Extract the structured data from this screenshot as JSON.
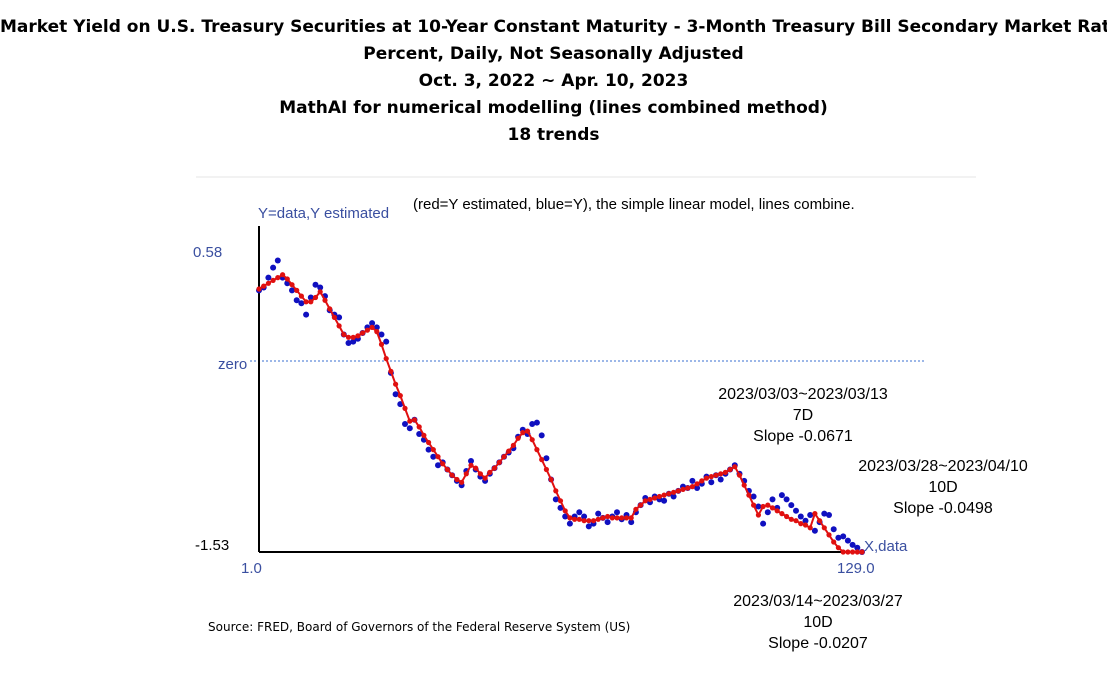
{
  "title_lines": [
    "Market Yield on U.S. Treasury Securities at 10-Year Constant Maturity - 3-Month Treasury Bill Secondary Market Rate,",
    "Percent, Daily, Not Seasonally Adjusted",
    "Oct. 3, 2022 ~ Apr. 10, 2023",
    "MathAI for numerical modelling (lines combined method)",
    "18 trends"
  ],
  "source": "Source: FRED, Board of Governors of the Federal Reserve System (US)",
  "colors": {
    "estimated": "#e01010",
    "data": "#1010c0",
    "axis": "#000000",
    "label_blue": "#3a4fa0",
    "zero_line": "#3a6fd0"
  },
  "chart_data": {
    "type": "line",
    "ylabel": "Y=data,Y estimated",
    "legend_text": "(red=Y estimated, blue=Y), the simple linear model, lines combine.",
    "xlabel": "X,data",
    "x_range": [
      1,
      129
    ],
    "y_range": [
      -1.53,
      0.58
    ],
    "x_tick_labels": [
      "1.0",
      "129.0"
    ],
    "y_tick_labels": [
      "0.58",
      "-1.53"
    ],
    "zero_label": "zero",
    "series": [
      {
        "name": "Y",
        "values": [
          0.31,
          0.33,
          0.4,
          0.47,
          0.52,
          0.4,
          0.36,
          0.31,
          0.24,
          0.22,
          0.14,
          0.26,
          0.35,
          0.33,
          0.27,
          0.17,
          0.14,
          0.12,
          0.0,
          -0.06,
          -0.05,
          -0.03,
          0.01,
          0.05,
          0.08,
          0.05,
          0.0,
          -0.05,
          -0.27,
          -0.42,
          -0.49,
          -0.63,
          -0.66,
          -0.6,
          -0.7,
          -0.74,
          -0.81,
          -0.86,
          -0.92,
          -0.9,
          -0.95,
          -0.99,
          -1.03,
          -1.06,
          -0.96,
          -0.89,
          -0.95,
          -1.0,
          -1.03,
          -0.98,
          -0.94,
          -0.9,
          -0.86,
          -0.83,
          -0.8,
          -0.72,
          -0.67,
          -0.7,
          -0.63,
          -0.62,
          -0.71,
          -0.87,
          -1.02,
          -1.16,
          -1.22,
          -1.28,
          -1.33,
          -1.28,
          -1.25,
          -1.28,
          -1.35,
          -1.33,
          -1.26,
          -1.29,
          -1.32,
          -1.28,
          -1.25,
          -1.3,
          -1.27,
          -1.32,
          -1.25,
          -1.2,
          -1.15,
          -1.18,
          -1.14,
          -1.16,
          -1.17,
          -1.12,
          -1.14,
          -1.1,
          -1.07,
          -1.08,
          -1.03,
          -1.08,
          -1.05,
          -1.0,
          -1.04,
          -0.99,
          -1.02,
          -0.98,
          -0.95,
          -0.92,
          -0.98,
          -1.03,
          -1.1,
          -1.14,
          -1.21,
          -1.33,
          -1.25,
          -1.16,
          -1.22,
          -1.13,
          -1.16,
          -1.2,
          -1.24,
          -1.28,
          -1.31,
          -1.27,
          -1.38,
          -1.32,
          -1.26,
          -1.27,
          -1.37,
          -1.43,
          -1.42,
          -1.45,
          -1.48,
          -1.5,
          -1.53
        ]
      },
      {
        "name": "Y estimated",
        "values": [
          0.32,
          0.34,
          0.36,
          0.38,
          0.4,
          0.42,
          0.39,
          0.35,
          0.31,
          0.27,
          0.23,
          0.23,
          0.26,
          0.3,
          0.24,
          0.18,
          0.12,
          0.06,
          0.0,
          -0.02,
          -0.02,
          -0.01,
          0.01,
          0.03,
          0.05,
          0.02,
          -0.07,
          -0.17,
          -0.26,
          -0.35,
          -0.43,
          -0.52,
          -0.61,
          -0.6,
          -0.65,
          -0.71,
          -0.76,
          -0.81,
          -0.86,
          -0.91,
          -0.95,
          -0.99,
          -1.02,
          -1.04,
          -0.98,
          -0.92,
          -0.94,
          -0.98,
          -1.01,
          -0.97,
          -0.94,
          -0.9,
          -0.86,
          -0.82,
          -0.78,
          -0.73,
          -0.69,
          -0.68,
          -0.74,
          -0.81,
          -0.88,
          -0.95,
          -1.02,
          -1.1,
          -1.17,
          -1.24,
          -1.29,
          -1.3,
          -1.3,
          -1.31,
          -1.31,
          -1.31,
          -1.3,
          -1.29,
          -1.28,
          -1.29,
          -1.29,
          -1.29,
          -1.29,
          -1.29,
          -1.23,
          -1.2,
          -1.17,
          -1.16,
          -1.15,
          -1.14,
          -1.13,
          -1.12,
          -1.11,
          -1.1,
          -1.09,
          -1.08,
          -1.07,
          -1.05,
          -1.03,
          -1.01,
          -1.0,
          -0.99,
          -0.98,
          -0.97,
          -0.95,
          -0.93,
          -0.99,
          -1.06,
          -1.13,
          -1.2,
          -1.27,
          -1.21,
          -1.2,
          -1.22,
          -1.24,
          -1.26,
          -1.28,
          -1.3,
          -1.31,
          -1.33,
          -1.34,
          -1.36,
          -1.26,
          -1.31,
          -1.36,
          -1.41,
          -1.46,
          -1.5,
          -1.53,
          -1.53,
          -1.53,
          -1.53,
          -1.53
        ]
      }
    ],
    "annotations": [
      {
        "lines": [
          "2023/03/03~2023/03/13",
          "7D",
          "Slope -0.0671"
        ]
      },
      {
        "lines": [
          "2023/03/28~2023/04/10",
          "10D",
          "Slope -0.0498"
        ]
      },
      {
        "lines": [
          "2023/03/14~2023/03/27",
          "10D",
          "Slope -0.0207"
        ]
      }
    ]
  }
}
